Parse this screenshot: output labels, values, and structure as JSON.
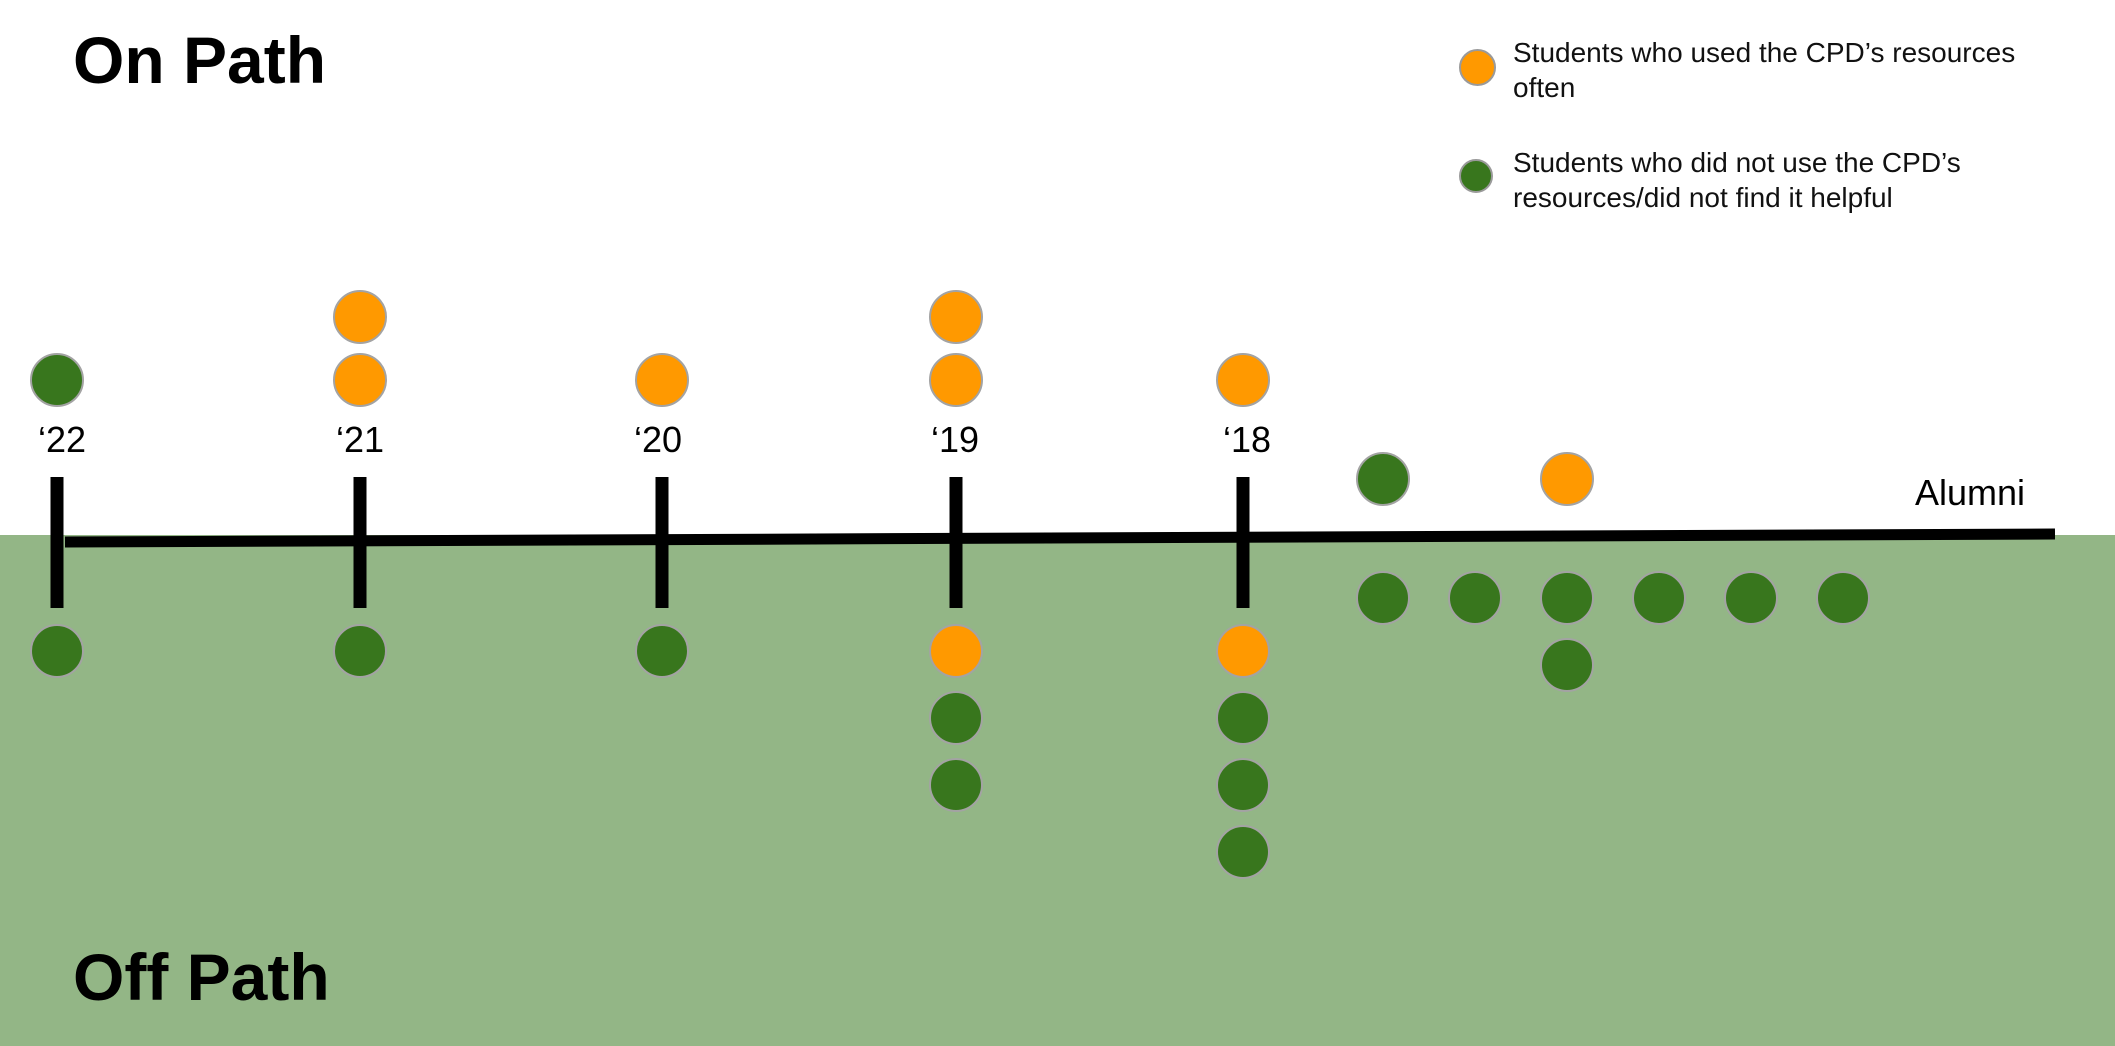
{
  "titles": {
    "on_path": "On Path",
    "off_path": "Off Path"
  },
  "legend": {
    "used": {
      "label": "Students who used the CPD’s resources often",
      "color": "#FF9900",
      "icon": "orange-dot"
    },
    "not_used": {
      "label": "Students who did not use the CPD’s resources/did not find it helpful",
      "color": "#38761D",
      "icon": "green-dot"
    }
  },
  "colors": {
    "off_path_background": "#93B686",
    "timeline": "#000000",
    "used": "#FF9900",
    "not_used": "#38761D",
    "dot_outline": "#A3A3A3"
  },
  "timeline": {
    "ticks": [
      {
        "label": "‘22",
        "on_path": [
          "not_used"
        ],
        "off_path": [
          "not_used"
        ]
      },
      {
        "label": "‘21",
        "on_path": [
          "used",
          "used"
        ],
        "off_path": [
          "not_used"
        ]
      },
      {
        "label": "‘20",
        "on_path": [
          "used"
        ],
        "off_path": [
          "not_used"
        ]
      },
      {
        "label": "‘19",
        "on_path": [
          "used",
          "used"
        ],
        "off_path": [
          "used",
          "not_used",
          "not_used"
        ]
      },
      {
        "label": "‘18",
        "on_path": [
          "used"
        ],
        "off_path": [
          "used",
          "not_used",
          "not_used",
          "not_used"
        ]
      }
    ],
    "alumni": {
      "label": "Alumni",
      "on_path": [
        "not_used",
        null,
        "used"
      ],
      "off_path": [
        [
          "not_used"
        ],
        [
          "not_used"
        ],
        [
          "not_used",
          "not_used"
        ],
        [
          "not_used"
        ],
        [
          "not_used"
        ],
        [
          "not_used"
        ]
      ]
    }
  }
}
